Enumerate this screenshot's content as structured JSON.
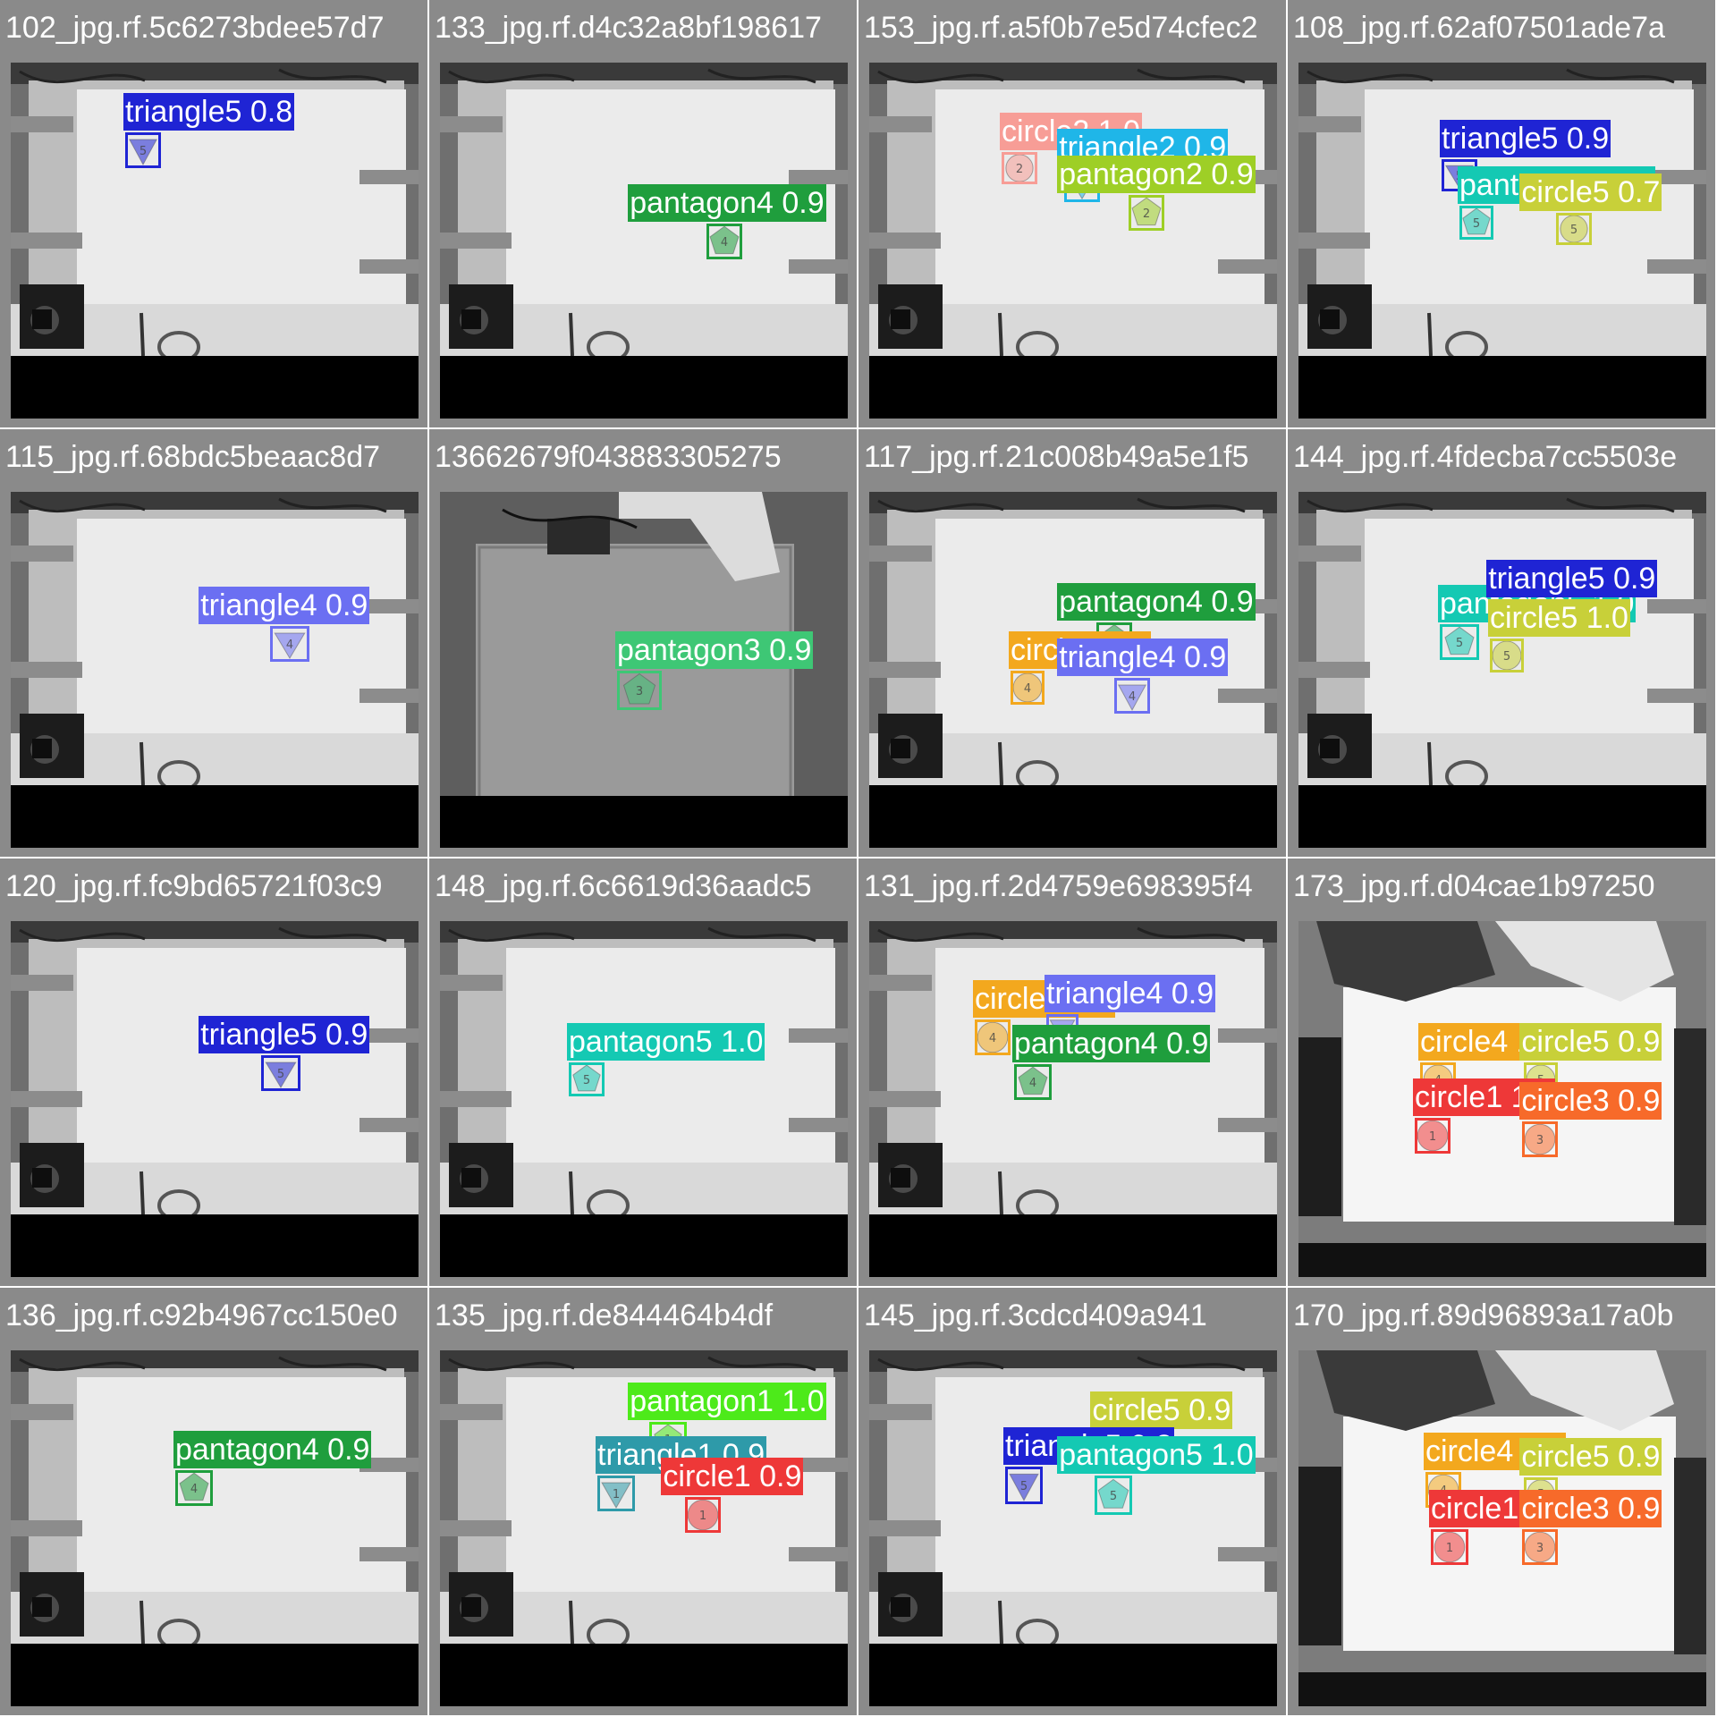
{
  "class_colors": {
    "triangle5": "#1f24d4",
    "triangle4": "#6b6ff2",
    "triangle2": "#1fb6e8",
    "triangle1": "#2e9aa9",
    "pantagon5": "#14c9b3",
    "pantagon4": "#1f9e3d",
    "pantagon3": "#3ec775",
    "pantagon2": "#9ecf26",
    "pantagon1": "#4dea1a",
    "circle5": "#c8d039",
    "circle4": "#f3a81e",
    "circle3": "#f76a2a",
    "circle2": "#f79d96",
    "circle1": "#ee3838"
  },
  "tiles": [
    {
      "name": "102_jpg.rf.5c6273bdee57d7",
      "scene": "table",
      "detections": [
        {
          "label": "triangle5 0.8",
          "cls": "triangle5",
          "shape": "triangle",
          "num": "5"
        }
      ]
    },
    {
      "name": "133_jpg.rf.d4c32a8bf198617",
      "scene": "table",
      "detections": [
        {
          "label": "pantagon4 0.9",
          "cls": "pantagon4",
          "shape": "pentagon",
          "num": "4"
        }
      ]
    },
    {
      "name": "153_jpg.rf.a5f0b7e5d74cfec2",
      "scene": "table",
      "detections": [
        {
          "label": "circle2 1.0",
          "cls": "circle2",
          "shape": "circle",
          "num": "2"
        },
        {
          "label": "triangle2 0.9",
          "cls": "triangle2",
          "shape": "triangle",
          "num": "2"
        },
        {
          "label": "pantagon2 0.9",
          "cls": "pantagon2",
          "shape": "pentagon",
          "num": "2"
        }
      ]
    },
    {
      "name": "108_jpg.rf.62af07501ade7a",
      "scene": "table",
      "detections": [
        {
          "label": "triangle5 0.9",
          "cls": "triangle5",
          "shape": "triangle",
          "num": "5"
        },
        {
          "label": "pantagon5 1.0",
          "cls": "pantagon5",
          "shape": "pentagon",
          "num": "5"
        },
        {
          "label": "circle5 0.7",
          "cls": "circle5",
          "shape": "circle",
          "num": "5"
        }
      ]
    },
    {
      "name": "115_jpg.rf.68bdc5beaac8d7",
      "scene": "table",
      "detections": [
        {
          "label": "triangle4 0.9",
          "cls": "triangle4",
          "shape": "triangle",
          "num": "4"
        }
      ]
    },
    {
      "name": "13662679f043883305275",
      "scene": "robot",
      "detections": [
        {
          "label": "pantagon3 0.9",
          "cls": "pantagon3",
          "shape": "pentagon",
          "num": "3"
        }
      ]
    },
    {
      "name": "117_jpg.rf.21c008b49a5e1f5",
      "scene": "table",
      "detections": [
        {
          "label": "pantagon4 0.9",
          "cls": "pantagon4",
          "shape": "pentagon",
          "num": "4"
        },
        {
          "label": "circle4 1.0",
          "cls": "circle4",
          "shape": "circle",
          "num": "4"
        },
        {
          "label": "triangle4 0.9",
          "cls": "triangle4",
          "shape": "triangle",
          "num": "4"
        }
      ]
    },
    {
      "name": "144_jpg.rf.4fdecba7cc5503e",
      "scene": "table",
      "detections": [
        {
          "label": "pantagon5 1.0",
          "cls": "pantagon5",
          "shape": "pentagon",
          "num": "5"
        },
        {
          "label": "triangle5 0.9",
          "cls": "triangle5",
          "shape": "triangle",
          "num": "5"
        },
        {
          "label": "circle5 1.0",
          "cls": "circle5",
          "shape": "circle",
          "num": "5"
        }
      ]
    },
    {
      "name": "120_jpg.rf.fc9bd65721f03c9",
      "scene": "table",
      "detections": [
        {
          "label": "triangle5 0.9",
          "cls": "triangle5",
          "shape": "triangle",
          "num": "5"
        }
      ]
    },
    {
      "name": "148_jpg.rf.6c6619d36aadc5",
      "scene": "table",
      "detections": [
        {
          "label": "pantagon5 1.0",
          "cls": "pantagon5",
          "shape": "pentagon",
          "num": "5"
        }
      ]
    },
    {
      "name": "131_jpg.rf.2d4759e698395f4",
      "scene": "table",
      "detections": [
        {
          "label": "circle4 1.0",
          "cls": "circle4",
          "shape": "circle",
          "num": "4"
        },
        {
          "label": "triangle4 0.9",
          "cls": "triangle4",
          "shape": "triangle",
          "num": "4"
        },
        {
          "label": "pantagon4 0.9",
          "cls": "pantagon4",
          "shape": "pentagon",
          "num": "4"
        }
      ]
    },
    {
      "name": "173_jpg.rf.d04cae1b97250",
      "scene": "robot-table",
      "detections": [
        {
          "label": "circle4 1.0",
          "cls": "circle4",
          "shape": "circle",
          "num": "4"
        },
        {
          "label": "circle5 0.9",
          "cls": "circle5",
          "shape": "circle",
          "num": "5"
        },
        {
          "label": "circle1 1.0",
          "cls": "circle1",
          "shape": "circle",
          "num": "1"
        },
        {
          "label": "circle3 0.9",
          "cls": "circle3",
          "shape": "circle",
          "num": "3"
        }
      ]
    },
    {
      "name": "136_jpg.rf.c92b4967cc150e0",
      "scene": "table",
      "detections": [
        {
          "label": "pantagon4 0.9",
          "cls": "pantagon4",
          "shape": "pentagon",
          "num": "4"
        }
      ]
    },
    {
      "name": "135_jpg.rf.de844464b4df",
      "scene": "table",
      "detections": [
        {
          "label": "pantagon1 1.0",
          "cls": "pantagon1",
          "shape": "pentagon",
          "num": "1"
        },
        {
          "label": "triangle1 0.9",
          "cls": "triangle1",
          "shape": "triangle",
          "num": "1"
        },
        {
          "label": "circle1 0.9",
          "cls": "circle1",
          "shape": "circle",
          "num": "1"
        }
      ]
    },
    {
      "name": "145_jpg.rf.3cdcd409a941",
      "scene": "table",
      "detections": [
        {
          "label": "circle5 0.9",
          "cls": "circle5",
          "shape": "circle",
          "num": "5"
        },
        {
          "label": "triangle5 0.8",
          "cls": "triangle5",
          "shape": "triangle",
          "num": "5"
        },
        {
          "label": "pantagon5 1.0",
          "cls": "pantagon5",
          "shape": "pentagon",
          "num": "5"
        }
      ]
    },
    {
      "name": "170_jpg.rf.89d96893a17a0b",
      "scene": "robot-table",
      "detections": [
        {
          "label": "circle4 0.9",
          "cls": "circle4",
          "shape": "circle",
          "num": "4"
        },
        {
          "label": "circle5 0.9",
          "cls": "circle5",
          "shape": "circle",
          "num": "5"
        },
        {
          "label": "circle1 0.9",
          "cls": "circle1",
          "shape": "circle",
          "num": "1"
        },
        {
          "label": "circle3 0.9",
          "cls": "circle3",
          "shape": "circle",
          "num": "3"
        }
      ]
    }
  ]
}
